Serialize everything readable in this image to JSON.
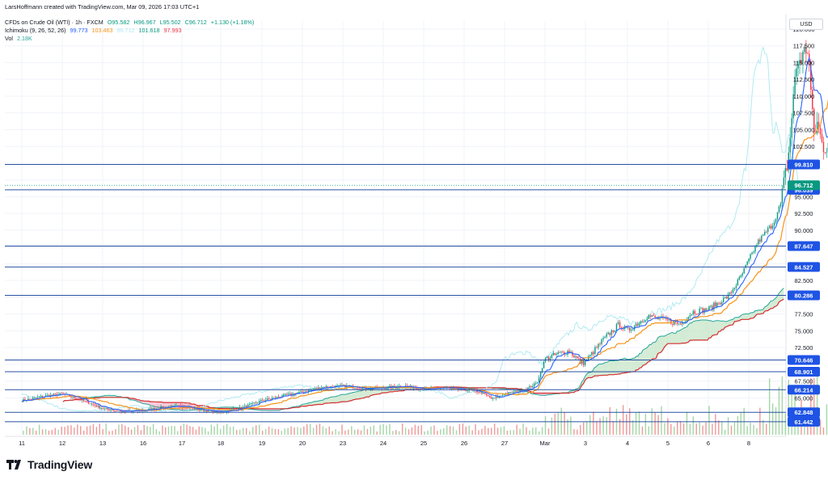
{
  "header": {
    "credit": "LarsHoffmann created with TradingView.com, Mar 09, 2026 17:03 UTC+1",
    "symbol": "CFDs on Crude Oil (WTI) · 1h · FXCM",
    "ohlc": {
      "o": "O95.582",
      "h": "H96.967",
      "l": "L95.502",
      "c": "C96.712",
      "chg": "+1.130 (+1.18%)"
    },
    "ichimoku_label": "Ichimoku (9, 26, 52, 26)",
    "ichimoku_values": [
      "99.773",
      "103.463",
      "96.712",
      "101.618",
      "97.993"
    ],
    "vol_label": "Vol",
    "vol_value": "2.18K"
  },
  "currency": "USD",
  "footer": {
    "brand": "TradingView"
  },
  "colors": {
    "up": "#089981",
    "down": "#f23645",
    "tenkan": "#2962ff",
    "kijun": "#f7931a",
    "chikou": "#b2ebf2",
    "span_a": "#26a69a",
    "span_b": "#d32f2f",
    "cloud_bull": "#c8e6c9",
    "cloud_bear": "#f8bbd0",
    "hline": "#2952a3",
    "price_tag": "#089981"
  },
  "chart_data": {
    "type": "candlestick",
    "title": "CFDs on Crude Oil (WTI) · 1h · FXCM",
    "xlabel": "",
    "ylabel": "",
    "ylim": [
      59.5,
      120
    ],
    "y_ticks": [
      "65.000",
      "67.500",
      "70.000",
      "72.500",
      "75.000",
      "77.500",
      "80.000",
      "82.500",
      "85.000",
      "87.500",
      "90.000",
      "92.500",
      "95.000",
      "97.500",
      "100.000",
      "102.500",
      "105.000",
      "107.500",
      "110.000",
      "112.500",
      "115.000",
      "117.500",
      "120.000"
    ],
    "y_tick_values": [
      65,
      67.5,
      70,
      72.5,
      75,
      77.5,
      80,
      82.5,
      85,
      87.5,
      90,
      92.5,
      95,
      97.5,
      100,
      102.5,
      105,
      107.5,
      110,
      112.5,
      115,
      117.5,
      120
    ],
    "x_ticks": [
      "11",
      "12",
      "13",
      "16",
      "17",
      "18",
      "19",
      "20",
      "23",
      "24",
      "25",
      "26",
      "27",
      "Mar",
      "3",
      "4",
      "5",
      "6",
      "8"
    ],
    "x_tick_index": [
      0,
      1,
      2,
      3,
      4,
      5,
      6,
      7,
      8,
      9,
      10,
      11,
      12,
      13,
      14,
      15,
      16,
      17,
      18
    ],
    "horizontal_levels": [
      {
        "value": 99.81,
        "label": "99.810"
      },
      {
        "value": 96.039,
        "label": "96.039"
      },
      {
        "value": 87.647,
        "label": "87.647"
      },
      {
        "value": 84.527,
        "label": "84.527"
      },
      {
        "value": 80.286,
        "label": "80.286"
      },
      {
        "value": 70.646,
        "label": "70.646"
      },
      {
        "value": 68.901,
        "label": "68.901"
      },
      {
        "value": 66.214,
        "label": "66.214"
      },
      {
        "value": 62.848,
        "label": "62.848"
      },
      {
        "value": 61.442,
        "label": "61.442"
      }
    ],
    "last_price": {
      "value": 96.712,
      "label": "96.712"
    },
    "price_path": [
      [
        0,
        64.6
      ],
      [
        0.5,
        65.2
      ],
      [
        1,
        65.6
      ],
      [
        1.3,
        65.0
      ],
      [
        1.7,
        64.2
      ],
      [
        2,
        63.4
      ],
      [
        2.5,
        63.0
      ],
      [
        3,
        63.1
      ],
      [
        3.5,
        63.6
      ],
      [
        4,
        63.8
      ],
      [
        4.5,
        63.2
      ],
      [
        5,
        62.9
      ],
      [
        5.5,
        63.5
      ],
      [
        6,
        64.6
      ],
      [
        6.5,
        65.3
      ],
      [
        7,
        65.9
      ],
      [
        7.5,
        66.6
      ],
      [
        8,
        66.8
      ],
      [
        8.5,
        66.4
      ],
      [
        9,
        66.5
      ],
      [
        9.5,
        66.8
      ],
      [
        10,
        66.3
      ],
      [
        10.5,
        66.5
      ],
      [
        11,
        66.2
      ],
      [
        11.4,
        65.9
      ],
      [
        11.7,
        64.8
      ],
      [
        12,
        65.6
      ],
      [
        12.5,
        66.2
      ],
      [
        12.8,
        67.2
      ],
      [
        13,
        70.8
      ],
      [
        13.3,
        71.5
      ],
      [
        13.6,
        72.0
      ],
      [
        13.9,
        70.2
      ],
      [
        14,
        70.4
      ],
      [
        14.4,
        73.5
      ],
      [
        14.8,
        76.0
      ],
      [
        15,
        75.0
      ],
      [
        15.5,
        77.2
      ],
      [
        16,
        76.5
      ],
      [
        16.3,
        76.0
      ],
      [
        16.6,
        77.8
      ],
      [
        17,
        78.2
      ],
      [
        17.2,
        79.0
      ],
      [
        17.5,
        80.2
      ],
      [
        17.8,
        83.0
      ],
      [
        18,
        85.5
      ],
      [
        18.2,
        88.0
      ],
      [
        18.4,
        89.5
      ],
      [
        18.6,
        91.0
      ],
      [
        18.8,
        94.0
      ],
      [
        19.0,
        102.0
      ],
      [
        19.1,
        110.0
      ],
      [
        19.2,
        115.0
      ],
      [
        19.35,
        116.0
      ],
      [
        19.45,
        117.5
      ],
      [
        19.5,
        114.5
      ],
      [
        19.6,
        104.0
      ],
      [
        19.7,
        106.0
      ],
      [
        19.8,
        103.0
      ],
      [
        19.9,
        102.5
      ],
      [
        20.0,
        104.0
      ],
      [
        20.1,
        101.5
      ],
      [
        20.2,
        99.5
      ],
      [
        20.3,
        97.0
      ],
      [
        20.4,
        96.7
      ]
    ],
    "candle_count": 520,
    "volume_max_label": "2.18K"
  }
}
